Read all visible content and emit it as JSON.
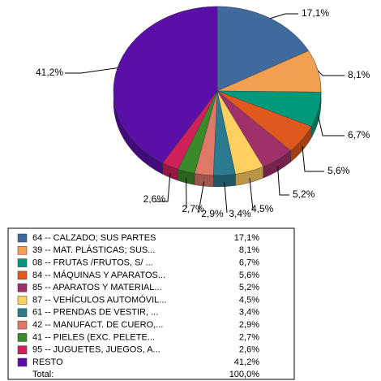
{
  "chart_data": {
    "type": "pie3d",
    "categories": [
      "64 -- CALZADO; SUS PARTES",
      "39 -- MAT. PLÁSTICAS; SUS...",
      "08 -- FRUTAS /FRUTOS, S/ ...",
      "84 -- MÁQUINAS Y APARATOS...",
      "85 -- APARATOS Y MATERIAL...",
      "87 -- VEHÍCULOS AUTOMÓVIL...",
      "61 -- PRENDAS DE VESTIR, ...",
      "42 -- MANUFACT. DE CUERO,...",
      "41 -- PIELES (EXC. PELETE...",
      "95 -- JUGUETES, JUEGOS, A...",
      "RESTO"
    ],
    "values": [
      17.1,
      8.1,
      6.7,
      5.6,
      5.2,
      4.5,
      3.4,
      2.9,
      2.7,
      2.6,
      41.2
    ],
    "value_labels": [
      "17,1%",
      "8,1%",
      "6,7%",
      "5,6%",
      "5,2%",
      "4,5%",
      "3,4%",
      "2,9%",
      "2,7%",
      "2,6%",
      "41,2%"
    ],
    "colors": [
      "#3e6a9e",
      "#f0a050",
      "#00997a",
      "#e0581e",
      "#a0306a",
      "#ffd060",
      "#2a7a90",
      "#e07868",
      "#3a8a2a",
      "#d0205a",
      "#5a10a8"
    ],
    "total": {
      "label": "Total:",
      "value": 100,
      "value_label": "100,0%"
    }
  }
}
